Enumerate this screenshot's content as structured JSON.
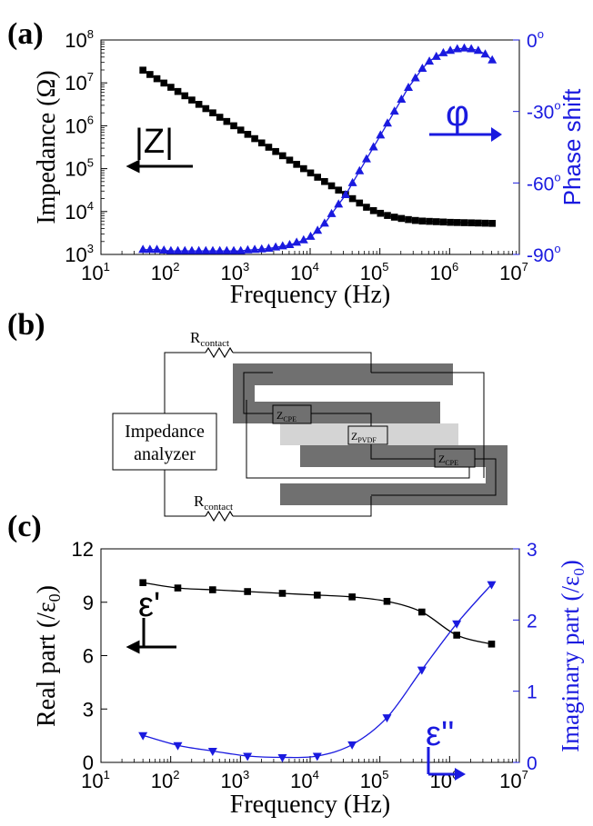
{
  "colors": {
    "black": "#000000",
    "blue": "#1a1adf",
    "dark_gray": "#707070",
    "light_gray": "#d4d4d4"
  },
  "panel_labels": {
    "a": "(a)",
    "b": "(b)",
    "c": "(c)"
  },
  "chart_data": [
    {
      "panel": "(a)",
      "type": "line",
      "xscale": "log",
      "xlim": [
        10,
        10000000
      ],
      "xlabel": "Frequency (Hz)",
      "x_ticks": [
        "10",
        "10",
        "10",
        "10",
        "10",
        "10",
        "10"
      ],
      "x_tick_exponents": [
        "1",
        "2",
        "3",
        "4",
        "5",
        "6",
        "7"
      ],
      "left_axis": {
        "label": "Impedance (Ω)",
        "scale": "log",
        "lim": [
          1000,
          100000000
        ],
        "ticks": [
          "10",
          "10",
          "10",
          "10",
          "10",
          "10"
        ],
        "tick_exponents": [
          "3",
          "4",
          "5",
          "6",
          "7",
          "8"
        ]
      },
      "right_axis": {
        "label": "Phase shift",
        "lim": [
          -90,
          0
        ],
        "ticks": [
          "-90",
          "-60",
          "-30",
          "0"
        ],
        "tick_suffix": "o"
      },
      "annotations": [
        "|Z|",
        "φ"
      ],
      "series": [
        {
          "name": "|Z|",
          "axis": "left",
          "color": "#000000",
          "marker": "square",
          "x": [
            40,
            50.4,
            63.5,
            80,
            100.7,
            126.8,
            159.7,
            201.2,
            253.4,
            319.1,
            401.9,
            506.2,
            637.5,
            803,
            1011,
            1274,
            1604,
            2020,
            2545,
            3205,
            4036,
            5083,
            6402,
            8063,
            10155,
            12790,
            16108,
            20287,
            25551,
            32180,
            40529,
            51044,
            64287,
            80966,
            101972,
            128428,
            161748,
            203714,
            256567,
            323132,
            406967,
            512553,
            645533,
            813013,
            1023944,
            1289599,
            1624179,
            2045564,
            2576276,
            3244677,
            4086497
          ],
          "y": [
            19800000,
            15700000,
            12500000,
            9900000,
            7900000,
            6300000,
            5000000,
            3980000,
            3160000,
            2510000,
            2000000,
            1580000,
            1260000,
            1000000,
            794000,
            631000,
            501000,
            398000,
            316000,
            251000,
            200000,
            158000,
            126000,
            100000,
            79400,
            63100,
            50100,
            39800,
            31600,
            25100,
            20000,
            15800,
            12600,
            10500,
            9100,
            8100,
            7400,
            6900,
            6500,
            6200,
            6000,
            5900,
            5800,
            5700,
            5600,
            5550,
            5500,
            5450,
            5400,
            5350,
            5300
          ]
        },
        {
          "name": "φ",
          "axis": "right",
          "color": "#1a1adf",
          "marker": "triangle-up",
          "x": [
            40,
            50.4,
            63.5,
            80,
            100.7,
            126.8,
            159.7,
            201.2,
            253.4,
            319.1,
            401.9,
            506.2,
            637.5,
            803,
            1011,
            1274,
            1604,
            2020,
            2545,
            3205,
            4036,
            5083,
            6402,
            8063,
            10155,
            12790,
            16108,
            20287,
            25551,
            32180,
            40529,
            51044,
            64287,
            80966,
            101972,
            128428,
            161748,
            203714,
            256567,
            323132,
            406967,
            512553,
            645533,
            813013,
            1023944,
            1289599,
            1624179,
            2045564,
            2576276,
            3244677,
            4086497
          ],
          "y": [
            -88,
            -88,
            -88,
            -88.3,
            -88.5,
            -88.5,
            -88.5,
            -88.5,
            -88.5,
            -88.5,
            -88.5,
            -88.5,
            -88.5,
            -88.5,
            -88.5,
            -88.2,
            -88,
            -87.8,
            -87.5,
            -87,
            -86.5,
            -86,
            -85,
            -84,
            -82.5,
            -80,
            -77,
            -73,
            -69,
            -65,
            -60,
            -55,
            -50,
            -45,
            -40,
            -35,
            -30,
            -25,
            -20,
            -16,
            -12,
            -9,
            -7,
            -5.5,
            -4.5,
            -3.8,
            -3.5,
            -3.8,
            -4.5,
            -6,
            -8.5
          ]
        }
      ]
    },
    {
      "panel": "(b)",
      "type": "diagram",
      "analyzer_label": [
        "Impedance",
        "analyzer"
      ],
      "labels": {
        "r_contact_top": {
          "main": "R",
          "sub": "contact"
        },
        "r_contact_bottom": {
          "main": "R",
          "sub": "contact"
        },
        "z_cpe_left": {
          "main": "Z",
          "sub": "CPE"
        },
        "z_pvdf": {
          "main": "Z",
          "sub": "PVDF"
        },
        "z_cpe_right": {
          "main": "Z",
          "sub": "CPE"
        }
      }
    },
    {
      "panel": "(c)",
      "type": "line",
      "xscale": "log",
      "xlim": [
        10,
        10000000
      ],
      "xlabel": "Frequency (Hz)",
      "x_ticks": [
        "10",
        "10",
        "10",
        "10",
        "10",
        "10",
        "10"
      ],
      "x_tick_exponents": [
        "1",
        "2",
        "3",
        "4",
        "5",
        "6",
        "7"
      ],
      "left_axis": {
        "label": "Real part (/ε",
        "label_sub": "0",
        "label_end": ")",
        "lim": [
          0,
          12
        ],
        "ticks": [
          "0",
          "3",
          "6",
          "9",
          "12"
        ]
      },
      "right_axis": {
        "label": "Imaginary part (/ε",
        "label_sub": "0",
        "label_end": ")",
        "lim": [
          0,
          3
        ],
        "ticks": [
          "0",
          "1",
          "2",
          "3"
        ]
      },
      "annotations": [
        "ε'",
        "ε''"
      ],
      "series": [
        {
          "name": "ε'",
          "axis": "left",
          "color": "#000000",
          "marker": "square",
          "x": [
            40,
            126.5,
            400,
            1265,
            4000,
            12650,
            40000,
            126500,
            400000,
            1265000,
            4000000
          ],
          "y": [
            10.1,
            9.8,
            9.7,
            9.6,
            9.5,
            9.4,
            9.3,
            9.05,
            8.45,
            7.15,
            6.65
          ]
        },
        {
          "name": "ε''",
          "axis": "right",
          "color": "#1a1adf",
          "marker": "triangle-down",
          "x": [
            40,
            126.5,
            400,
            1265,
            4000,
            12650,
            40000,
            126500,
            400000,
            1265000,
            4000000
          ],
          "y": [
            0.38,
            0.24,
            0.16,
            0.09,
            0.07,
            0.09,
            0.25,
            0.63,
            1.3,
            1.95,
            2.5
          ]
        }
      ]
    }
  ]
}
